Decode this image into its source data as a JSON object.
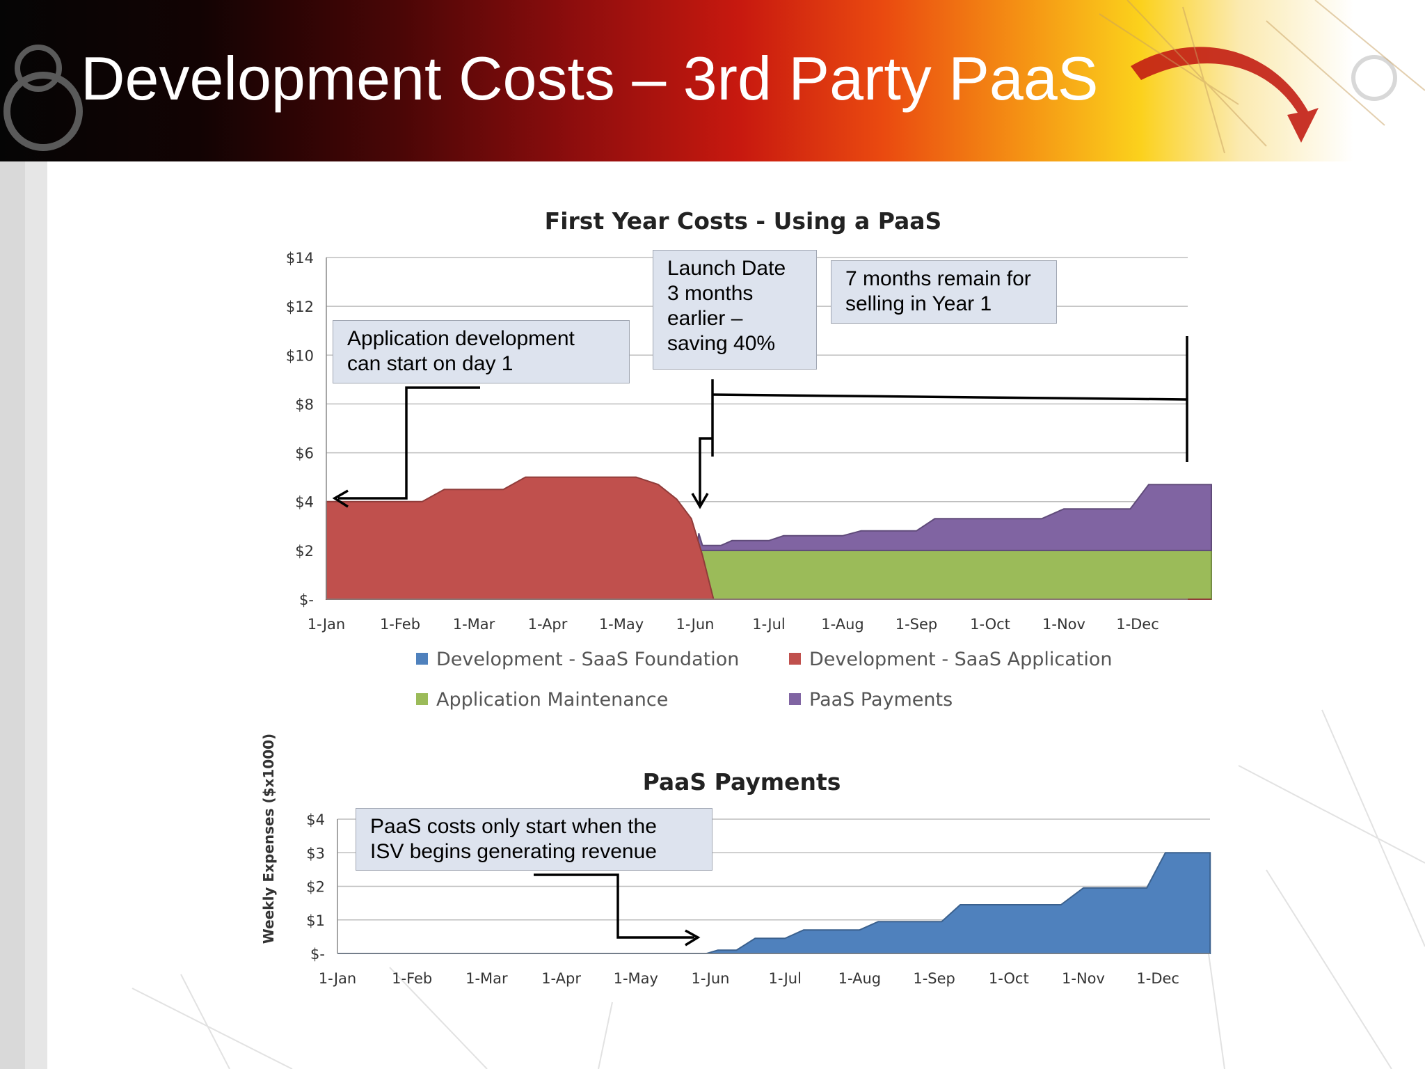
{
  "slide": {
    "title": "Development Costs – 3rd Party PaaS",
    "header_colors": [
      "#050505",
      "#8c0d0d",
      "#ea4a10",
      "#fbd11c",
      "#ffffff"
    ]
  },
  "callouts": {
    "app_dev": "Application development\ncan start on day 1",
    "launch": "Launch Date\n3 months\nearlier –\nsaving 40%",
    "remaining": "7 months remain for\nselling in Year 1",
    "paas_start": "PaaS costs only start when the\nISV begins generating revenue"
  },
  "chart_data": [
    {
      "type": "area",
      "title": "First Year Costs - Using a PaaS",
      "xlabel": "",
      "ylabel": "",
      "ylim": [
        0,
        14
      ],
      "y_ticks": [
        "$-",
        "$2",
        "$4",
        "$6",
        "$8",
        "$10",
        "$12",
        "$14"
      ],
      "x_ticks": [
        "1-Jan",
        "1-Feb",
        "1-Mar",
        "1-Apr",
        "1-May",
        "1-Jun",
        "1-Jul",
        "1-Aug",
        "1-Sep",
        "1-Oct",
        "1-Nov",
        "1-Dec"
      ],
      "stacked": true,
      "grid": true,
      "legend_position": "bottom",
      "legend": [
        "Development - SaaS Foundation",
        "Development - SaaS Application",
        "Application Maintenance",
        "PaaS Payments"
      ],
      "series": [
        {
          "name": "Development - SaaS Foundation",
          "color": "#4f81bd",
          "points": [
            [
              5.0,
              0
            ],
            [
              5.05,
              0.2
            ],
            [
              5.15,
              0
            ],
            [
              12.0,
              0
            ]
          ]
        },
        {
          "name": "Development - SaaS Application",
          "color": "#c0504d",
          "points": [
            [
              0,
              4
            ],
            [
              1.3,
              4
            ],
            [
              1.6,
              4.5
            ],
            [
              2.4,
              4.5
            ],
            [
              2.7,
              5
            ],
            [
              4.2,
              5
            ],
            [
              4.5,
              4.7
            ],
            [
              4.75,
              4.1
            ],
            [
              4.95,
              3.3
            ],
            [
              5.1,
              1.8
            ],
            [
              5.25,
              0
            ],
            [
              12.0,
              0
            ]
          ]
        },
        {
          "name": "Application Maintenance",
          "color": "#9bbb59",
          "points": [
            [
              0,
              0
            ],
            [
              4.95,
              0
            ],
            [
              5.05,
              2
            ],
            [
              12.0,
              2
            ]
          ]
        },
        {
          "name": "PaaS Payments",
          "color": "#8064a2",
          "points": [
            [
              0,
              0
            ],
            [
              4.95,
              0
            ],
            [
              5.05,
              0.7
            ],
            [
              5.1,
              0.2
            ],
            [
              5.35,
              0.2
            ],
            [
              5.5,
              0.4
            ],
            [
              6.0,
              0.4
            ],
            [
              6.2,
              0.6
            ],
            [
              7.0,
              0.6
            ],
            [
              7.25,
              0.8
            ],
            [
              8.0,
              0.8
            ],
            [
              8.25,
              1.3
            ],
            [
              9.7,
              1.3
            ],
            [
              10.0,
              1.7
            ],
            [
              10.9,
              1.7
            ],
            [
              11.15,
              2.7
            ],
            [
              12.0,
              2.7
            ]
          ]
        }
      ]
    },
    {
      "type": "area",
      "title": "PaaS Payments",
      "xlabel": "",
      "ylabel": "Weekly Expenses ($x1000)",
      "ylim": [
        0,
        4
      ],
      "y_ticks": [
        "$-",
        "$1",
        "$2",
        "$3",
        "$4"
      ],
      "x_ticks": [
        "1-Jan",
        "1-Feb",
        "1-Mar",
        "1-Apr",
        "1-May",
        "1-Jun",
        "1-Jul",
        "1-Aug",
        "1-Sep",
        "1-Oct",
        "1-Nov",
        "1-Dec"
      ],
      "grid": true,
      "series": [
        {
          "name": "PaaS Payments",
          "color": "#4f81bd",
          "points": [
            [
              0,
              0
            ],
            [
              4.95,
              0
            ],
            [
              5.1,
              0.1
            ],
            [
              5.35,
              0.1
            ],
            [
              5.6,
              0.45
            ],
            [
              6.0,
              0.45
            ],
            [
              6.25,
              0.7
            ],
            [
              7.0,
              0.7
            ],
            [
              7.25,
              0.95
            ],
            [
              8.1,
              0.95
            ],
            [
              8.35,
              1.45
            ],
            [
              9.7,
              1.45
            ],
            [
              10.0,
              1.95
            ],
            [
              10.85,
              1.95
            ],
            [
              11.1,
              3.0
            ],
            [
              11.7,
              3.0
            ]
          ]
        }
      ]
    }
  ]
}
